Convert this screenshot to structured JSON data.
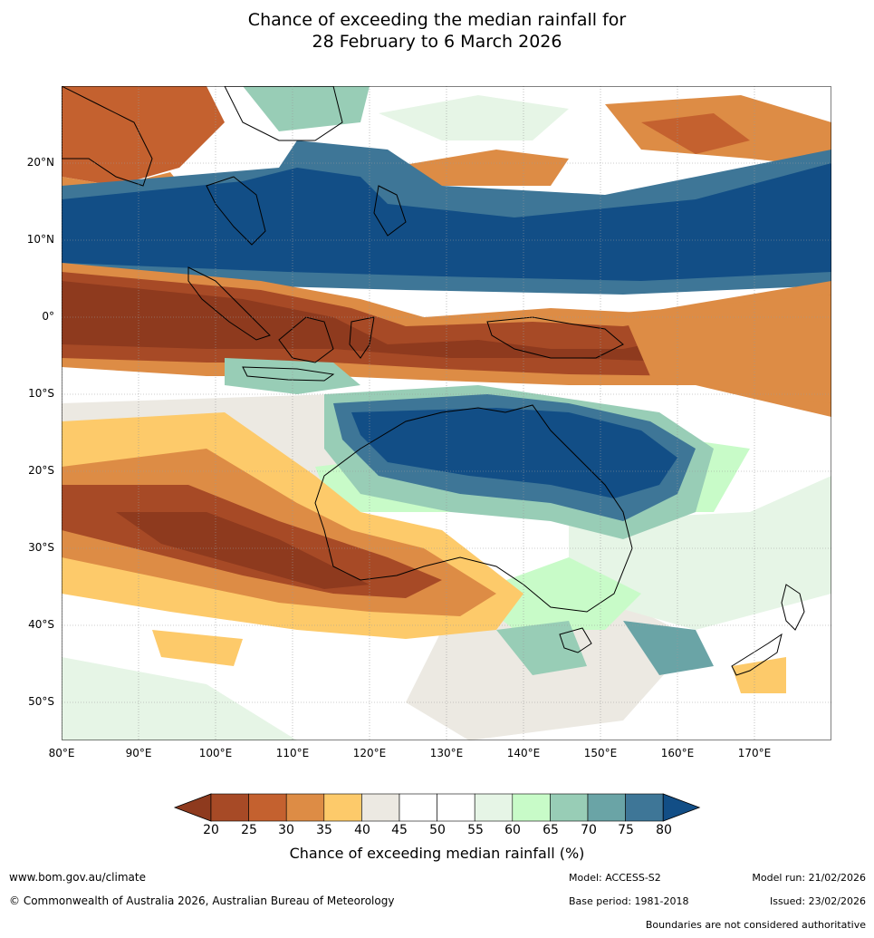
{
  "header": {
    "title_line1": "Chance of exceeding the median rainfall for",
    "title_line2": "28 February to 6 March 2026"
  },
  "map": {
    "lat_labels": [
      "20°N",
      "10°N",
      "0°",
      "10°S",
      "20°S",
      "30°S",
      "40°S",
      "50°S"
    ],
    "lon_labels": [
      "80°E",
      "90°E",
      "100°E",
      "110°E",
      "120°E",
      "130°E",
      "140°E",
      "150°E",
      "160°E",
      "170°E"
    ],
    "colors": {
      "very_dry": "#8e3a1e",
      "dry": "#a74a26",
      "moderately_dry": "#c4612f",
      "slightly_dry": "#dd8c45",
      "light_dry": "#fdca6a",
      "neutral_low": "#ece9e2",
      "neutral": "#ffffff",
      "light_wet": "#e6f5e6",
      "slightly_wet": "#c8fbc8",
      "moderately_wet": "#98cdb6",
      "wet": "#6aa4a6",
      "very_wet": "#3e7697",
      "extremely_wet": "#124e86"
    }
  },
  "legend": {
    "ticks": [
      "20",
      "25",
      "30",
      "35",
      "40",
      "45",
      "50",
      "55",
      "60",
      "65",
      "70",
      "75",
      "80"
    ],
    "label": "Chance of exceeding median rainfall (%)",
    "colors": [
      "#a74a26",
      "#c4612f",
      "#dd8c45",
      "#fdca6a",
      "#ece9e2",
      "#ffffff",
      "#ffffff",
      "#e6f5e6",
      "#c8fbc8",
      "#98cdb6",
      "#6aa4a6",
      "#3e7697"
    ],
    "low_color": "#8e3a1e",
    "high_color": "#124e86"
  },
  "footer": {
    "website": "www.bom.gov.au/climate",
    "copyright": "© Commonwealth of Australia 2026, Australian Bureau of Meteorology",
    "model": "Model: ACCESS-S2",
    "base_period": "Base period: 1981-2018",
    "model_run": "Model run: 21/02/2026",
    "issued": "Issued: 23/02/2026",
    "disclaimer": "Boundaries are not considered authoritative"
  }
}
